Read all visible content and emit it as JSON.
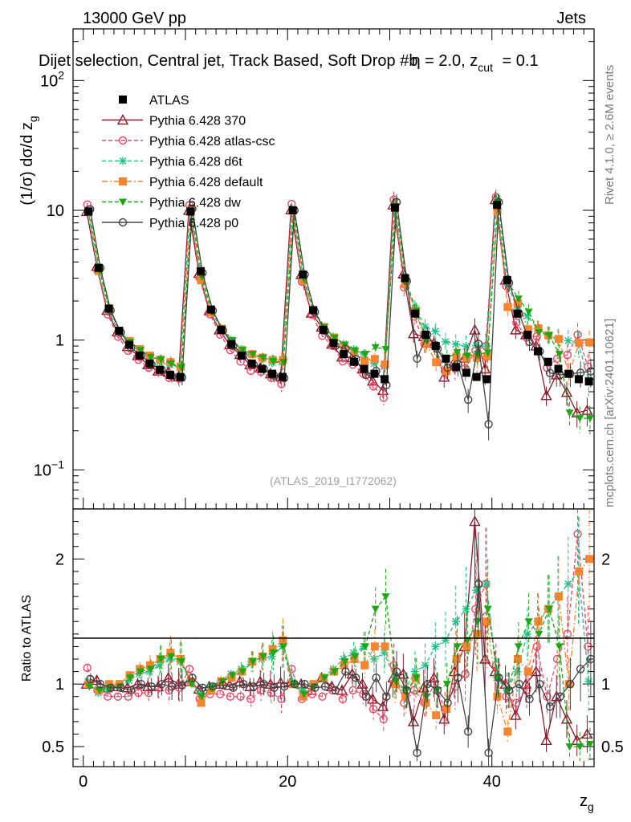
{
  "header": {
    "energy_label": "13000 GeV pp",
    "category_label": "Jets",
    "title": "Dijet selection, Central jet, Track Based, Soft Drop #b = 2.0, z_cut = 0.1"
  },
  "side_labels": {
    "rivet": "Rivet 4.1.0, ≥ 2.6M events",
    "mcplots": "mcplots.cern.ch [arXiv:2401.10621]"
  },
  "watermark": "(ATLAS_2019_I1772062)",
  "axes": {
    "y_main_label": "(1/σ) dσ/d z_g",
    "y_ratio_label": "Ratio to ATLAS",
    "x_label": "z_g",
    "x_ticks": [
      "0",
      "20",
      "40"
    ],
    "y_main_ticks": [
      "10^−1",
      "1",
      "10",
      "10^2"
    ],
    "y_ratio_ticks": [
      "0.5",
      "1",
      "2"
    ]
  },
  "legend": [
    {
      "name": "ATLAS",
      "color": "#000000",
      "marker": "square-filled",
      "dash": "none"
    },
    {
      "name": "Pythia 6.428 370",
      "color": "#8b1a2b",
      "marker": "triangle-open",
      "dash": "solid"
    },
    {
      "name": "Pythia 6.428 atlas-csc",
      "color": "#ef4565",
      "marker": "circle-open",
      "dash": "dashed"
    },
    {
      "name": "Pythia 6.428 d6t",
      "color": "#1fc28a",
      "marker": "star",
      "dash": "dashed"
    },
    {
      "name": "Pythia 6.428 default",
      "color": "#f7852f",
      "marker": "square-filled",
      "dash": "dashdot"
    },
    {
      "name": "Pythia 6.428 dw",
      "color": "#1ea618",
      "marker": "triangle-down-filled",
      "dash": "dashed"
    },
    {
      "name": "Pythia 6.428 p0",
      "color": "#444444",
      "marker": "circle-open",
      "dash": "solid"
    }
  ],
  "chart_data": {
    "type": "line",
    "xlabel": "z_g",
    "ylabel": "(1/σ) dσ/d z_g",
    "xlim": [
      -1,
      50
    ],
    "ylim": [
      0.05,
      250
    ],
    "ratio_ylim": [
      0.34,
      2.4
    ],
    "x": [
      0.5,
      1.5,
      2.5,
      3.5,
      4.5,
      5.5,
      6.5,
      7.5,
      8.5,
      9.5,
      10.5,
      11.5,
      12.5,
      13.5,
      14.5,
      15.5,
      16.5,
      17.5,
      18.5,
      19.5,
      20.5,
      21.5,
      22.5,
      23.5,
      24.5,
      25.5,
      26.5,
      27.5,
      28.5,
      29.5,
      30.5,
      31.5,
      32.5,
      33.5,
      34.5,
      35.5,
      36.5,
      37.5,
      38.5,
      39.5,
      40.5,
      41.5,
      42.5,
      43.5,
      44.5,
      45.5,
      46.5,
      47.5,
      48.5,
      49.5
    ],
    "series": [
      {
        "name": "ATLAS",
        "values": [
          9.8,
          3.6,
          1.75,
          1.18,
          0.92,
          0.76,
          0.66,
          0.59,
          0.54,
          0.52,
          9.8,
          3.4,
          1.72,
          1.2,
          0.93,
          0.76,
          0.66,
          0.6,
          0.55,
          0.52,
          10.0,
          3.2,
          1.7,
          1.2,
          0.95,
          0.78,
          0.68,
          0.6,
          0.55,
          0.5,
          10.5,
          3.0,
          1.6,
          1.1,
          0.9,
          0.72,
          0.62,
          0.56,
          0.52,
          0.5,
          11.0,
          2.9,
          1.6,
          1.1,
          0.82,
          0.68,
          0.6,
          0.55,
          0.5,
          0.48
        ]
      },
      {
        "name": "Pythia 6.428 370",
        "ratio": [
          1.0,
          1.03,
          0.97,
          0.98,
          0.97,
          1.0,
          0.98,
          0.98,
          1.05,
          1.0,
          1.02,
          0.96,
          0.98,
          1.0,
          0.99,
          1.02,
          0.98,
          1.02,
          1.0,
          1.01,
          1.01,
          1.0,
          0.95,
          1.05,
          0.98,
          0.95,
          1.08,
          1.0,
          0.88,
          0.82,
          1.05,
          1.08,
          0.7,
          0.97,
          1.05,
          0.72,
          1.1,
          1.3,
          2.3,
          1.2,
          1.1,
          1.0,
          0.75,
          1.0,
          1.1,
          0.55,
          0.9,
          0.72,
          0.55,
          0.6
        ]
      },
      {
        "name": "Pythia 6.428 atlas-csc",
        "ratio": [
          1.13,
          0.95,
          0.9,
          0.9,
          0.9,
          0.93,
          0.93,
          0.97,
          0.95,
          0.97,
          1.12,
          0.88,
          0.92,
          0.92,
          0.9,
          0.9,
          0.88,
          0.95,
          0.93,
          0.88,
          1.12,
          0.88,
          0.92,
          0.9,
          0.95,
          0.88,
          0.95,
          0.92,
          0.8,
          0.72,
          1.15,
          0.85,
          0.95,
          0.85,
          1.0,
          0.8,
          0.98,
          1.08,
          1.6,
          1.8,
          1.15,
          0.9,
          0.85,
          0.95,
          1.3,
          0.9,
          1.2,
          1.4,
          2.2,
          1.3
        ]
      },
      {
        "name": "Pythia 6.428 d6t",
        "ratio": [
          1.02,
          0.93,
          0.96,
          0.99,
          1.03,
          1.08,
          1.1,
          1.15,
          1.2,
          1.18,
          1.03,
          0.92,
          0.98,
          1.03,
          1.08,
          1.12,
          1.18,
          1.2,
          1.22,
          1.3,
          1.02,
          0.95,
          1.0,
          1.05,
          1.12,
          1.2,
          1.25,
          1.3,
          1.2,
          1.25,
          1.05,
          0.95,
          1.1,
          1.15,
          1.3,
          1.35,
          1.5,
          1.6,
          1.75,
          1.8,
          1.05,
          0.95,
          1.1,
          1.4,
          1.5,
          1.6,
          1.7,
          1.8,
          1.9,
          1.02
        ]
      },
      {
        "name": "Pythia 6.428 default",
        "ratio": [
          1.0,
          0.95,
          1.0,
          1.0,
          1.07,
          1.12,
          1.15,
          1.2,
          1.25,
          1.2,
          1.02,
          0.85,
          0.95,
          1.02,
          1.05,
          1.1,
          1.18,
          1.22,
          1.28,
          1.35,
          1.0,
          0.9,
          1.0,
          1.05,
          1.1,
          1.15,
          1.2,
          1.15,
          1.3,
          1.3,
          1.0,
          0.9,
          1.05,
          0.85,
          0.75,
          0.8,
          1.2,
          1.3,
          1.4,
          1.5,
          0.9,
          0.62,
          1.2,
          1.1,
          1.5,
          1.6,
          1.7,
          1.0,
          1.9,
          2.0
        ]
      },
      {
        "name": "Pythia 6.428 dw",
        "ratio": [
          0.98,
          0.95,
          0.97,
          0.98,
          1.05,
          1.1,
          1.12,
          1.2,
          1.22,
          1.18,
          1.0,
          0.9,
          0.97,
          1.02,
          1.07,
          1.1,
          1.18,
          1.22,
          1.25,
          1.3,
          1.0,
          0.92,
          0.98,
          1.05,
          1.1,
          1.18,
          1.22,
          1.3,
          1.6,
          1.7,
          1.02,
          0.95,
          1.05,
          0.9,
          0.95,
          1.0,
          1.3,
          1.35,
          1.5,
          1.6,
          1.05,
          0.95,
          1.3,
          1.5,
          1.4,
          1.6,
          1.3,
          0.5,
          0.5,
          0.52
        ]
      },
      {
        "name": "Pythia 6.428 p0",
        "ratio": [
          1.04,
          1.0,
          0.97,
          0.97,
          0.95,
          1.0,
          0.98,
          1.0,
          0.98,
          0.99,
          1.05,
          0.97,
          0.98,
          0.99,
          0.97,
          1.0,
          0.98,
          1.0,
          0.97,
          0.98,
          1.0,
          1.0,
          0.97,
          0.98,
          0.95,
          1.1,
          1.05,
          0.9,
          1.05,
          0.9,
          1.1,
          0.95,
          0.45,
          1.0,
          0.95,
          0.85,
          1.05,
          0.62,
          1.8,
          0.45,
          1.05,
          0.95,
          1.0,
          0.88,
          1.0,
          0.82,
          0.9,
          1.0,
          1.12,
          1.2
        ]
      }
    ]
  }
}
